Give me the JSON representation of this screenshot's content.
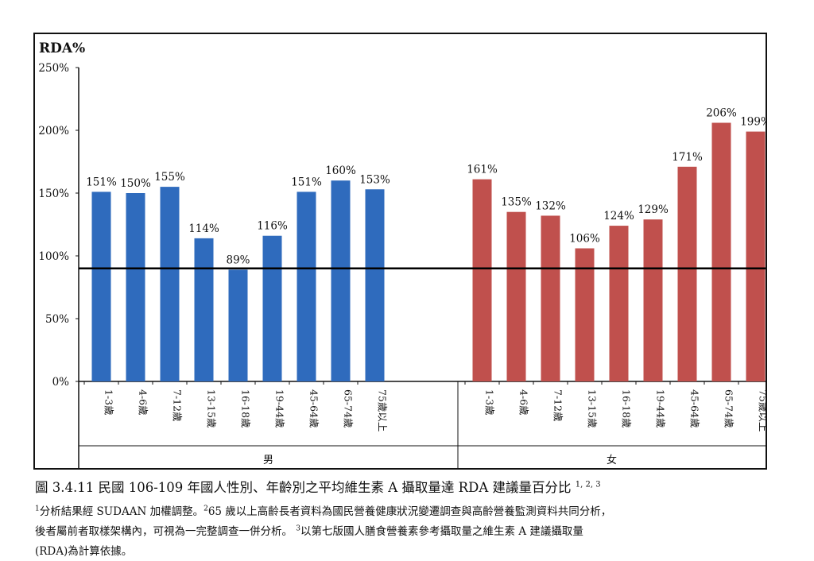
{
  "chart_data": {
    "type": "bar",
    "ylabel": "RDA%",
    "ylim": [
      0,
      250
    ],
    "yticks": [
      "0%",
      "50%",
      "100%",
      "150%",
      "200%",
      "250%"
    ],
    "reference_line": 90,
    "groups": [
      {
        "name": "男",
        "color": "#2f6bbd",
        "categories": [
          "1-3歲",
          "4-6歲",
          "7-12歲",
          "13-15歲",
          "16-18歲",
          "19-44歲",
          "45-64歲",
          "65-74歲",
          "75歲以上"
        ],
        "values": [
          151,
          150,
          155,
          114,
          89,
          116,
          151,
          160,
          153
        ],
        "labels": [
          "151%",
          "150%",
          "155%",
          "114%",
          "89%",
          "116%",
          "151%",
          "160%",
          "153%"
        ]
      },
      {
        "name": "女",
        "color": "#c0504d",
        "categories": [
          "1-3歲",
          "4-6歲",
          "7-12歲",
          "13-15歲",
          "16-18歲",
          "19-44歲",
          "45-64歲",
          "65-74歲",
          "75歲以上"
        ],
        "values": [
          161,
          135,
          132,
          106,
          124,
          129,
          171,
          206,
          199
        ],
        "labels": [
          "161%",
          "135%",
          "132%",
          "106%",
          "124%",
          "129%",
          "171%",
          "206%",
          "199%"
        ]
      }
    ]
  },
  "caption": {
    "text": "圖 3.4.11 民國 106-109 年國人性別、年齡別之平均維生素 A 攝取量達 RDA 建議量百分比",
    "sup": "1, 2, 3"
  },
  "notes": {
    "n1_mark": "1",
    "n1_text": "分析結果經 SUDAAN 加權調整。",
    "n2_mark": "2",
    "n2_text": "65 歲以上高齡長者資料為國民營養健康狀況變遷調查與高齡營養監測資料共同分析，",
    "line2": "後者屬前者取樣架構內，可視為一完整調查一併分析。 ",
    "n3_mark": "3",
    "n3_text": "以第七版國人膳食營養素參考攝取量之維生素 A 建議攝取量",
    "line3": "(RDA)為計算依據。"
  }
}
